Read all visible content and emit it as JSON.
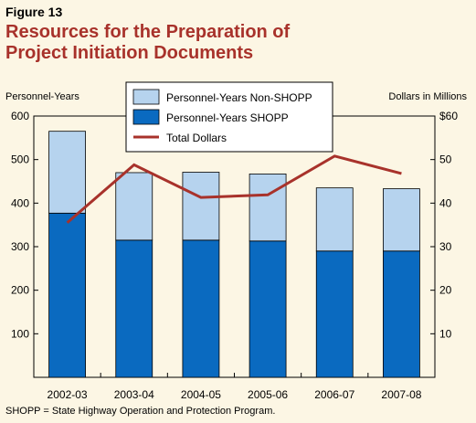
{
  "figure_label": "Figure 13",
  "title_lines": [
    "Resources for the Preparation of",
    "Project Initiation Documents"
  ],
  "footnote": "SHOPP = State Highway Operation and Protection Program.",
  "colors": {
    "background": "#fcf6e4",
    "title": "#a8322b",
    "shopp": "#0a6ac0",
    "non_shopp": "#b6d3ee",
    "dollars_line": "#a8322b"
  },
  "chart_data": {
    "type": "bar",
    "stacked": true,
    "categories": [
      "2002-03",
      "2003-04",
      "2004-05",
      "2005-06",
      "2006-07",
      "2007-08"
    ],
    "series": [
      {
        "name": "Personnel-Years SHOPP",
        "type": "bar",
        "axis": "left",
        "values": [
          377,
          315,
          315,
          313,
          290,
          290
        ]
      },
      {
        "name": "Personnel-Years Non-SHOPP",
        "type": "bar",
        "axis": "left",
        "values": [
          188,
          155,
          156,
          154,
          145,
          143
        ]
      },
      {
        "name": "Total Dollars",
        "type": "line",
        "axis": "right",
        "values": [
          35.5,
          48.8,
          41.3,
          41.9,
          50.8,
          46.8
        ]
      }
    ],
    "y_left": {
      "label": "Personnel-Years",
      "min": 0,
      "max": 600,
      "ticks": [
        "",
        "100",
        "200",
        "300",
        "400",
        "500",
        "600"
      ]
    },
    "y_right": {
      "label": "Dollars in Millions",
      "min": 0,
      "max": 60,
      "ticks": [
        "",
        "10",
        "20",
        "30",
        "40",
        "50",
        "$60"
      ]
    },
    "legend": {
      "placement": "top-center",
      "items": [
        {
          "label": "Personnel-Years Non-SHOPP",
          "kind": "box",
          "color_key": "non_shopp"
        },
        {
          "label": "Personnel-Years SHOPP",
          "kind": "box",
          "color_key": "shopp"
        },
        {
          "label": "Total Dollars",
          "kind": "line",
          "color_key": "dollars_line"
        }
      ]
    },
    "grid": false
  }
}
